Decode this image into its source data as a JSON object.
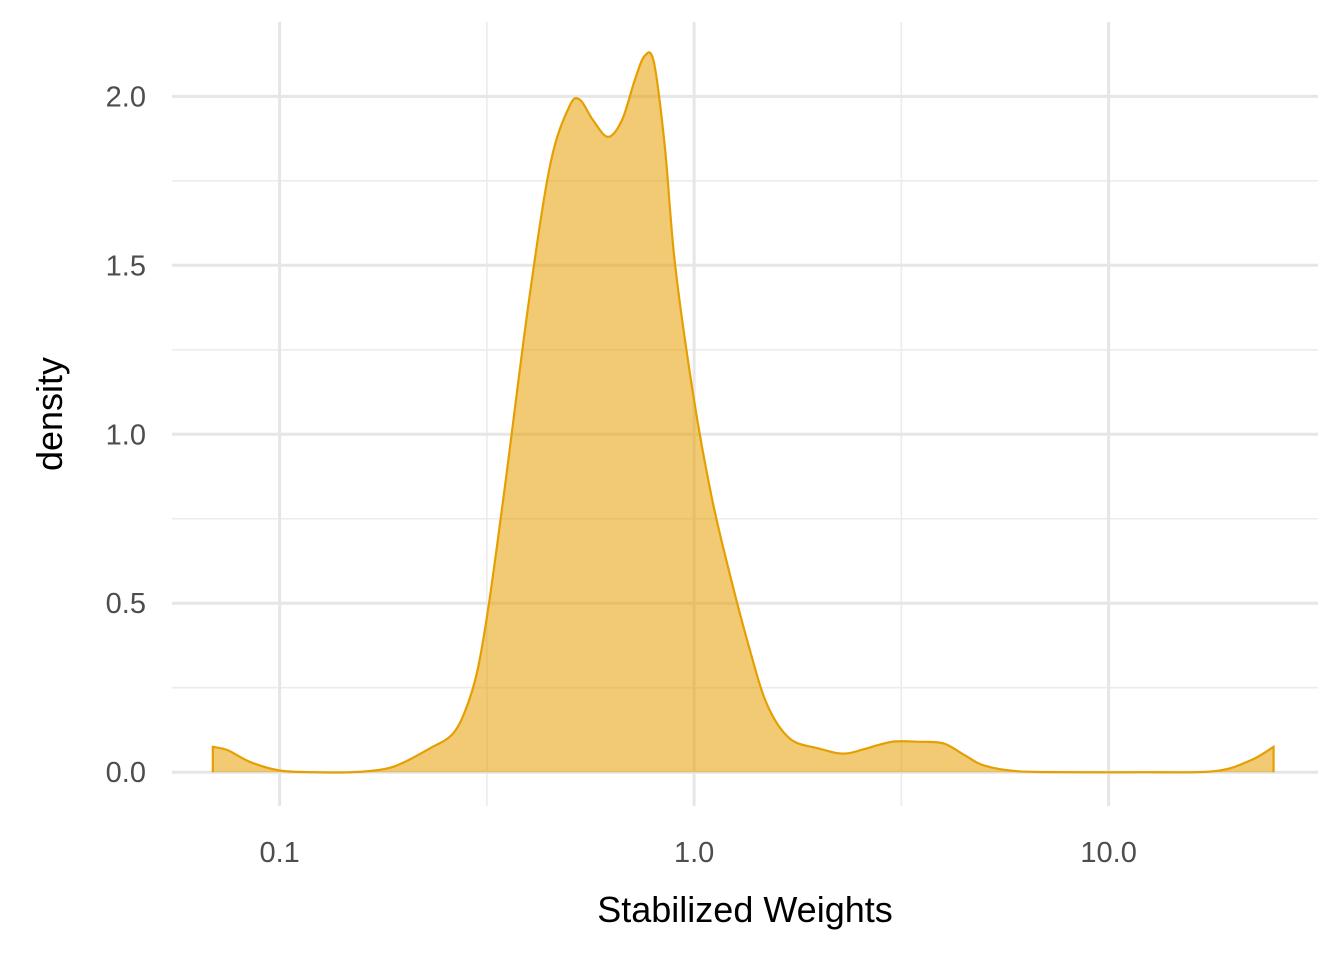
{
  "chart_data": {
    "type": "area",
    "title": "",
    "xlabel": "Stabilized Weights",
    "ylabel": "density",
    "x_scale": "log10",
    "xlim": [
      0.055,
      32
    ],
    "ylim": [
      -0.1,
      2.22
    ],
    "x_ticks": [
      {
        "value": 0.1,
        "label": "0.1"
      },
      {
        "value": 1.0,
        "label": "1.0"
      },
      {
        "value": 10.0,
        "label": "10.0"
      }
    ],
    "y_ticks": [
      {
        "value": 0.0,
        "label": "0.0"
      },
      {
        "value": 0.5,
        "label": "0.5"
      },
      {
        "value": 1.0,
        "label": "1.0"
      },
      {
        "value": 1.5,
        "label": "1.5"
      },
      {
        "value": 2.0,
        "label": "2.0"
      }
    ],
    "grid": true,
    "colors": {
      "fill": "#E69F00",
      "fill_opacity": 0.55,
      "line": "#E69F00"
    },
    "series": [
      {
        "name": "density",
        "x": [
          0.069,
          0.075,
          0.085,
          0.1,
          0.12,
          0.15,
          0.18,
          0.2,
          0.23,
          0.26,
          0.28,
          0.3,
          0.32,
          0.35,
          0.4,
          0.45,
          0.5,
          0.53,
          0.57,
          0.62,
          0.67,
          0.72,
          0.76,
          0.8,
          0.85,
          0.9,
          1.0,
          1.1,
          1.2,
          1.35,
          1.5,
          1.7,
          2.0,
          2.3,
          2.6,
          3.0,
          3.5,
          4.0,
          4.5,
          5.0,
          6.0,
          8.0,
          12.0,
          18.0,
          22.0,
          25.0
        ],
        "y": [
          0.075,
          0.065,
          0.03,
          0.005,
          0.0,
          0.0,
          0.01,
          0.03,
          0.07,
          0.11,
          0.18,
          0.3,
          0.5,
          0.85,
          1.4,
          1.8,
          1.97,
          1.99,
          1.93,
          1.88,
          1.93,
          2.05,
          2.12,
          2.1,
          1.85,
          1.5,
          1.1,
          0.82,
          0.62,
          0.38,
          0.2,
          0.1,
          0.07,
          0.055,
          0.07,
          0.09,
          0.09,
          0.085,
          0.05,
          0.02,
          0.003,
          0.0,
          0.0,
          0.003,
          0.035,
          0.075
        ]
      }
    ]
  }
}
